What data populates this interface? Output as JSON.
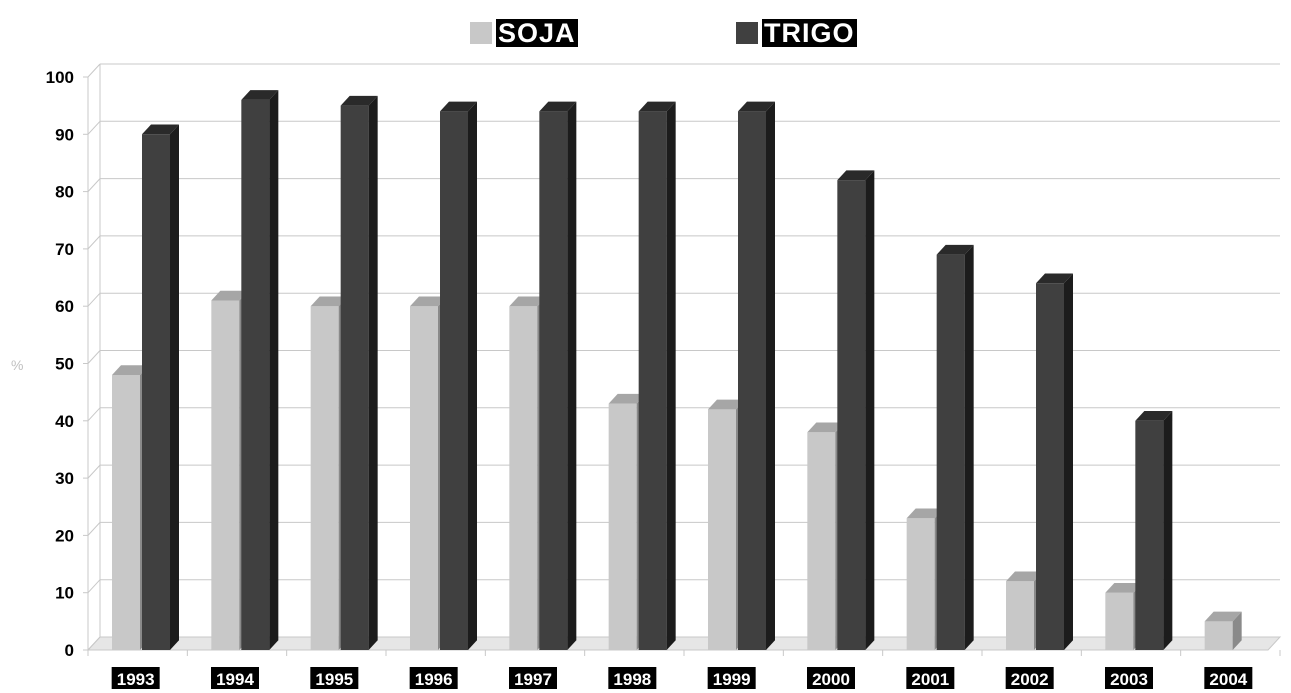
{
  "chart_data": {
    "type": "bar",
    "style": "3d-clustered",
    "categories": [
      "1993",
      "1994",
      "1995",
      "1996",
      "1997",
      "1998",
      "1999",
      "2000",
      "2001",
      "2002",
      "2003",
      "2004"
    ],
    "series": [
      {
        "name": "SOJA",
        "color": "#c8c8c8",
        "values": [
          48,
          61,
          60,
          60,
          60,
          43,
          42,
          38,
          23,
          12,
          10,
          5
        ]
      },
      {
        "name": "TRIGO",
        "color": "#404040",
        "values": [
          90,
          96,
          95,
          94,
          94,
          94,
          94,
          82,
          69,
          64,
          40,
          null
        ]
      }
    ],
    "ylabel": "%",
    "ylim": [
      0,
      100
    ],
    "yticks": [
      0,
      10,
      20,
      30,
      40,
      50,
      60,
      70,
      80,
      90,
      100
    ],
    "grid": true,
    "legend_position": "top"
  }
}
